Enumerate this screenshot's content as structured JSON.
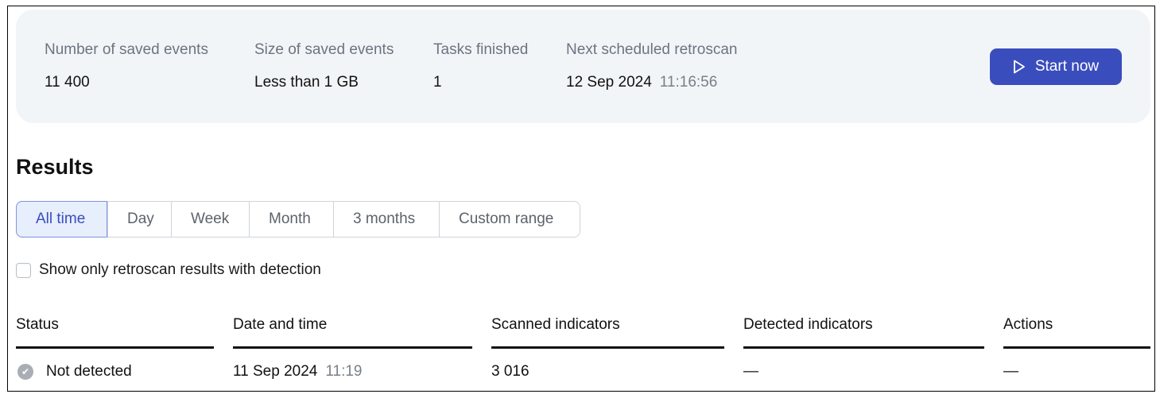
{
  "summary": {
    "saved_events_label": "Number of saved events",
    "saved_events_value": "11 400",
    "size_label": "Size of saved events",
    "size_value": "Less than 1 GB",
    "tasks_label": "Tasks finished",
    "tasks_value": "1",
    "next_label": "Next scheduled retroscan",
    "next_date": "12 Sep 2024",
    "next_time": "11:16:56",
    "start_button": "Start now",
    "accent": "#3a4dbd"
  },
  "results": {
    "title": "Results",
    "ranges": [
      "All time",
      "Day",
      "Week",
      "Month",
      "3 months",
      "Custom range"
    ],
    "active_range": "All time",
    "filter_label": "Show only retroscan results with detection",
    "filter_checked": false,
    "columns": [
      "Status",
      "Date and time",
      "Scanned indicators",
      "Detected indicators",
      "Actions"
    ],
    "rows": [
      {
        "status": "Not detected",
        "status_icon": "check-circle-icon",
        "date": "11 Sep 2024",
        "time": "11:19",
        "scanned": "3 016",
        "detected": "—",
        "actions": "—"
      }
    ]
  }
}
